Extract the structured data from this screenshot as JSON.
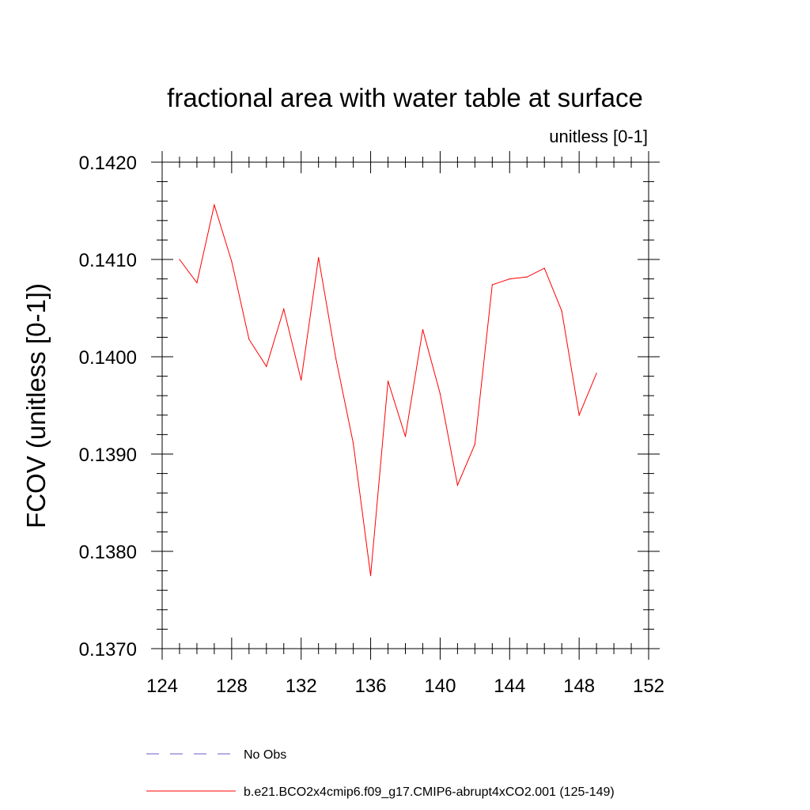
{
  "chart_data": {
    "type": "line",
    "title": "fractional area with water table at surface",
    "subtitle": "unitless [0-1]",
    "xlabel": "",
    "ylabel": "FCOV  (unitless [0-1])",
    "xlim": [
      124,
      152
    ],
    "ylim": [
      0.137,
      0.142
    ],
    "x_ticks": [
      "124",
      "128",
      "132",
      "136",
      "140",
      "144",
      "148",
      "152"
    ],
    "y_ticks": [
      "0.1370",
      "0.1380",
      "0.1390",
      "0.1400",
      "0.1410",
      "0.1420"
    ],
    "grid": false,
    "legend_position": "bottom",
    "series": [
      {
        "name": "b.e21.BCO2x4cmip6.f09_g17.CMIP6-abrupt4xCO2.001 (125-149)",
        "color": "#ff0000",
        "style": "solid",
        "x": [
          125,
          126,
          127,
          128,
          129,
          130,
          131,
          132,
          133,
          134,
          135,
          136,
          137,
          138,
          139,
          140,
          141,
          142,
          143,
          144,
          145,
          146,
          147,
          148,
          149
        ],
        "values": [
          0.141,
          0.14076,
          0.14156,
          0.14098,
          0.14018,
          0.1399,
          0.14049,
          0.13976,
          0.14102,
          0.13998,
          0.13911,
          0.13775,
          0.13975,
          0.13918,
          0.14028,
          0.13962,
          0.13868,
          0.1391,
          0.14074,
          0.1408,
          0.14082,
          0.14091,
          0.14047,
          0.1394,
          0.13983
        ]
      }
    ],
    "legend": [
      {
        "label": "No Obs",
        "color": "#6a5acd",
        "style": "dashed"
      },
      {
        "label": "b.e21.BCO2x4cmip6.f09_g17.CMIP6-abrupt4xCO2.001 (125-149)",
        "color": "#ff0000",
        "style": "solid"
      }
    ]
  }
}
